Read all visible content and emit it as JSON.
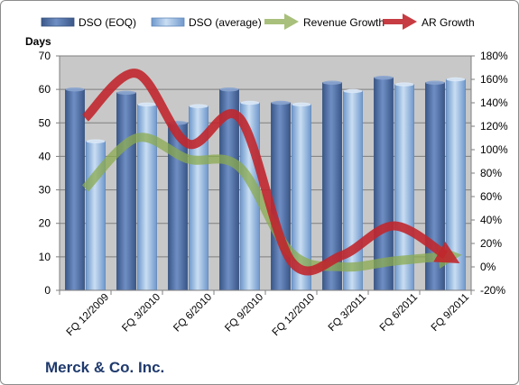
{
  "chart_data": {
    "type": "bar",
    "title": "Merck & Co. Inc.",
    "ylabel": "Days",
    "categories": [
      "FQ 12/2009",
      "FQ 3/2010",
      "FQ 6/2010",
      "FQ 9/2010",
      "FQ 12/2010",
      "FQ 3/2011",
      "FQ 6/2011",
      "FQ 9/2011"
    ],
    "series": [
      {
        "name": "DSO (EOQ)",
        "type": "bar",
        "axis": "left",
        "values": [
          60,
          59,
          50,
          60,
          56,
          62,
          63.5,
          62
        ]
      },
      {
        "name": "DSO (average)",
        "type": "bar",
        "axis": "left",
        "values": [
          44.5,
          55.5,
          55,
          56,
          55.5,
          59.5,
          61.5,
          63
        ]
      },
      {
        "name": "Revenue Growth",
        "type": "line",
        "axis": "right",
        "unit": "%",
        "values": [
          67,
          110,
          92,
          85,
          12,
          0,
          5,
          9
        ]
      },
      {
        "name": "AR Growth",
        "type": "line",
        "axis": "right",
        "unit": "%",
        "values": [
          127,
          165,
          105,
          127,
          5,
          10,
          35,
          10
        ]
      }
    ],
    "y_left": {
      "lim": [
        0,
        70
      ],
      "ticks": [
        "0",
        "10",
        "20",
        "30",
        "40",
        "50",
        "60",
        "70"
      ]
    },
    "y_right": {
      "lim": [
        -20,
        180
      ],
      "ticks": [
        "-20%",
        "0%",
        "20%",
        "40%",
        "60%",
        "80%",
        "100%",
        "120%",
        "140%",
        "160%",
        "180%"
      ]
    },
    "grid": true,
    "legend": "top",
    "colors": {
      "dso_eoq": "#4f6ea3",
      "dso_avg": "#8fb4de",
      "revenue": "#8bab4f",
      "ar": "#c0272d",
      "plot_bg": "#c8c8c8"
    }
  }
}
